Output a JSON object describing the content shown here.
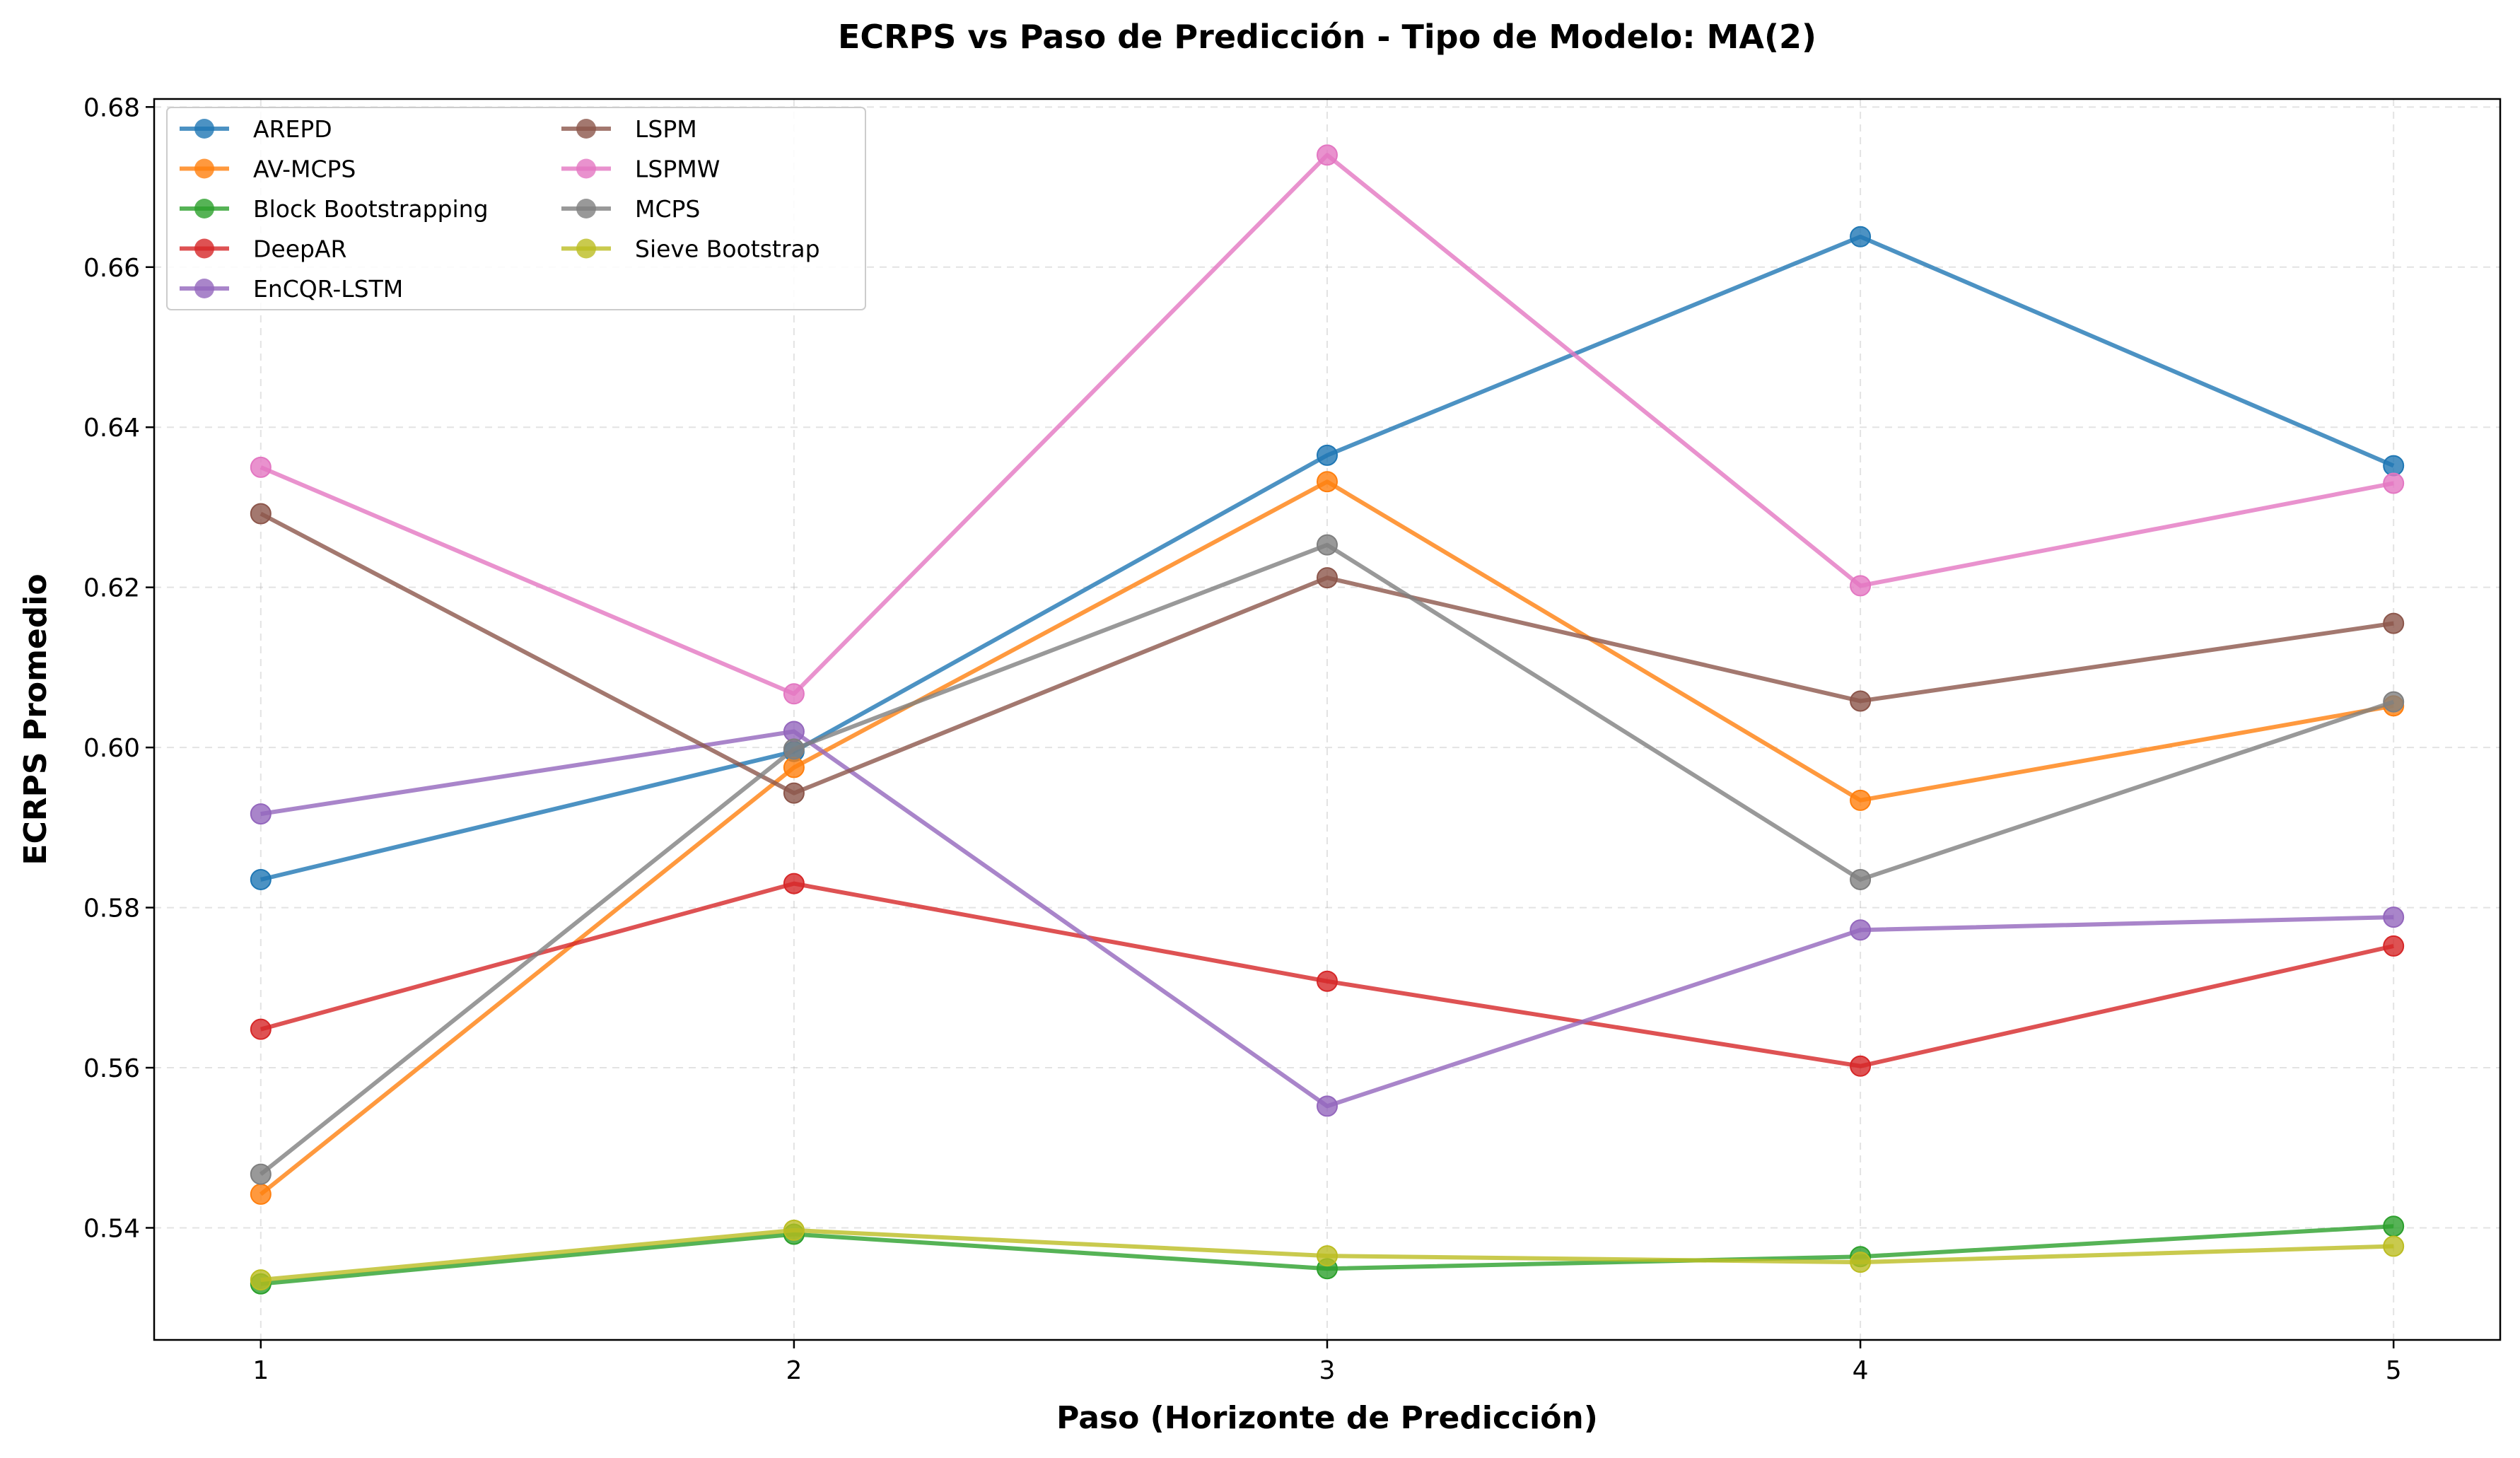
{
  "chart_data": {
    "type": "line",
    "title": "ECRPS vs Paso de Predicción - Tipo de Modelo: MA(2)",
    "xlabel": "Paso (Horizonte de Predicción)",
    "ylabel": "ECRPS Promedio",
    "x": [
      1,
      2,
      3,
      4,
      5
    ],
    "x_tick_labels": [
      "1",
      "2",
      "3",
      "4",
      "5"
    ],
    "xlim": [
      0.8,
      5.2
    ],
    "ylim": [
      0.526,
      0.681
    ],
    "y_ticks": [
      0.54,
      0.56,
      0.58,
      0.6,
      0.62,
      0.64,
      0.66,
      0.68
    ],
    "y_tick_labels": [
      "0.54",
      "0.56",
      "0.58",
      "0.60",
      "0.62",
      "0.64",
      "0.66",
      "0.68"
    ],
    "grid": true,
    "legend_position": "top-left",
    "series": [
      {
        "name": "AREPD",
        "color": "#1f77b4",
        "values": [
          0.5835,
          0.5995,
          0.6365,
          0.6638,
          0.6352
        ]
      },
      {
        "name": "AV-MCPS",
        "color": "#ff7f0e",
        "values": [
          0.5442,
          0.5975,
          0.6332,
          0.5934,
          0.6052
        ]
      },
      {
        "name": "Block Bootstrapping",
        "color": "#2ca02c",
        "values": [
          0.533,
          0.5392,
          0.5349,
          0.5364,
          0.5402
        ]
      },
      {
        "name": "DeepAR",
        "color": "#d62728",
        "values": [
          0.5648,
          0.583,
          0.5708,
          0.5602,
          0.5752
        ]
      },
      {
        "name": "EnCQR-LSTM",
        "color": "#9467bd",
        "values": [
          0.5917,
          0.602,
          0.5552,
          0.5772,
          0.5788
        ]
      },
      {
        "name": "LSPM",
        "color": "#8c564b",
        "values": [
          0.6292,
          0.5943,
          0.6212,
          0.6058,
          0.6155
        ]
      },
      {
        "name": "LSPMW",
        "color": "#e377c2",
        "values": [
          0.635,
          0.6067,
          0.674,
          0.6202,
          0.633
        ]
      },
      {
        "name": "MCPS",
        "color": "#7f7f7f",
        "values": [
          0.5467,
          0.5998,
          0.6253,
          0.5835,
          0.6057
        ]
      },
      {
        "name": "Sieve Bootstrap",
        "color": "#bcbd22",
        "values": [
          0.5335,
          0.5397,
          0.5365,
          0.5357,
          0.5377
        ]
      }
    ]
  }
}
